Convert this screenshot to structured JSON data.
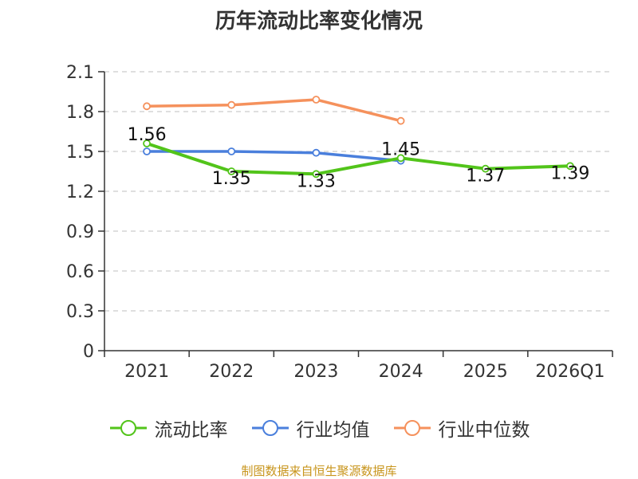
{
  "chart_data": {
    "type": "line",
    "title": "历年流动比率变化情况",
    "categories": [
      "2021",
      "2022",
      "2023",
      "2024",
      "2025",
      "2026Q1"
    ],
    "yticks": [
      0,
      0.3,
      0.6,
      0.9,
      1.2,
      1.5,
      1.8,
      2.1
    ],
    "ylim": [
      0,
      2.1
    ],
    "xlabel": "",
    "ylabel": "",
    "grid": true,
    "legend_position": "bottom",
    "series": [
      {
        "name": "流动比率",
        "color": "#52c41a",
        "values": [
          1.56,
          1.35,
          1.33,
          1.45,
          1.37,
          1.39
        ],
        "labels": [
          "1.56",
          "1.35",
          "1.33",
          "1.45",
          "1.37",
          "1.39"
        ]
      },
      {
        "name": "行业均值",
        "color": "#4a7fdc",
        "values": [
          1.5,
          1.5,
          1.49,
          1.43,
          null,
          null
        ]
      },
      {
        "name": "行业中位数",
        "color": "#f5915c",
        "values": [
          1.84,
          1.85,
          1.89,
          1.73,
          null,
          null
        ]
      }
    ]
  },
  "source_text": "制图数据来自恒生聚源数据库"
}
